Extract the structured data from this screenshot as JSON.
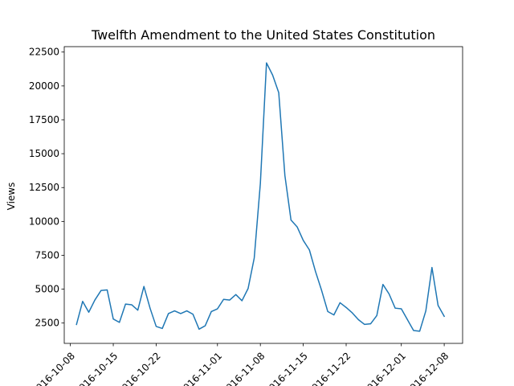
{
  "chart_data": {
    "type": "line",
    "title": "Twelfth Amendment to the United States Constitution",
    "xlabel": "",
    "ylabel": "Views",
    "x_start": "2016-10-08",
    "x_end": "2016-12-08",
    "xlim": [
      "2016-10-07",
      "2016-12-11"
    ],
    "ylim": [
      1000,
      22900
    ],
    "xticks": [
      "2016-10-08",
      "2016-10-15",
      "2016-10-22",
      "2016-11-01",
      "2016-11-08",
      "2016-11-15",
      "2016-11-22",
      "2016-12-01",
      "2016-12-08"
    ],
    "xtick_labels": [
      "2016-10-08",
      "2016-10-15",
      "2016-10-22",
      "2016-11-01",
      "2016-11-08",
      "2016-11-15",
      "2016-11-22",
      "2016-12-01",
      "2016-12-08"
    ],
    "yticks": [
      2500,
      5000,
      7500,
      10000,
      12500,
      15000,
      17500,
      20000,
      22500
    ],
    "ytick_labels": [
      "2500",
      "5000",
      "7500",
      "10000",
      "12500",
      "15000",
      "17500",
      "20000",
      "22500"
    ],
    "grid": false,
    "series": [
      {
        "color": "#1f77b4",
        "x": [
          "2016-10-09",
          "2016-10-10",
          "2016-10-11",
          "2016-10-12",
          "2016-10-13",
          "2016-10-14",
          "2016-10-15",
          "2016-10-16",
          "2016-10-17",
          "2016-10-18",
          "2016-10-19",
          "2016-10-20",
          "2016-10-21",
          "2016-10-22",
          "2016-10-23",
          "2016-10-24",
          "2016-10-25",
          "2016-10-26",
          "2016-10-27",
          "2016-10-28",
          "2016-10-29",
          "2016-10-30",
          "2016-10-31",
          "2016-11-01",
          "2016-11-02",
          "2016-11-03",
          "2016-11-04",
          "2016-11-05",
          "2016-11-06",
          "2016-11-07",
          "2016-11-08",
          "2016-11-09",
          "2016-11-10",
          "2016-11-11",
          "2016-11-12",
          "2016-11-13",
          "2016-11-14",
          "2016-11-15",
          "2016-11-16",
          "2016-11-17",
          "2016-11-18",
          "2016-11-19",
          "2016-11-20",
          "2016-11-21",
          "2016-11-22",
          "2016-11-23",
          "2016-11-24",
          "2016-11-25",
          "2016-11-26",
          "2016-11-27",
          "2016-11-28",
          "2016-11-29",
          "2016-11-30",
          "2016-12-01",
          "2016-12-02",
          "2016-12-03",
          "2016-12-04",
          "2016-12-05",
          "2016-12-06",
          "2016-12-07",
          "2016-12-08"
        ],
        "y": [
          2400,
          4100,
          3300,
          4200,
          4900,
          4950,
          2800,
          2550,
          3900,
          3850,
          3450,
          5200,
          3600,
          2250,
          2100,
          3200,
          3400,
          3200,
          3400,
          3150,
          2050,
          2300,
          3350,
          3550,
          4250,
          4200,
          4600,
          4150,
          5050,
          7300,
          12800,
          21700,
          20800,
          19500,
          13400,
          10100,
          9600,
          8600,
          7900,
          6300,
          4900,
          3350,
          3100,
          4000,
          3650,
          3250,
          2750,
          2400,
          2450,
          3050,
          5350,
          4650,
          3600,
          3550,
          2750,
          1950,
          1900,
          3400,
          6600,
          3800,
          3000
        ]
      }
    ]
  }
}
